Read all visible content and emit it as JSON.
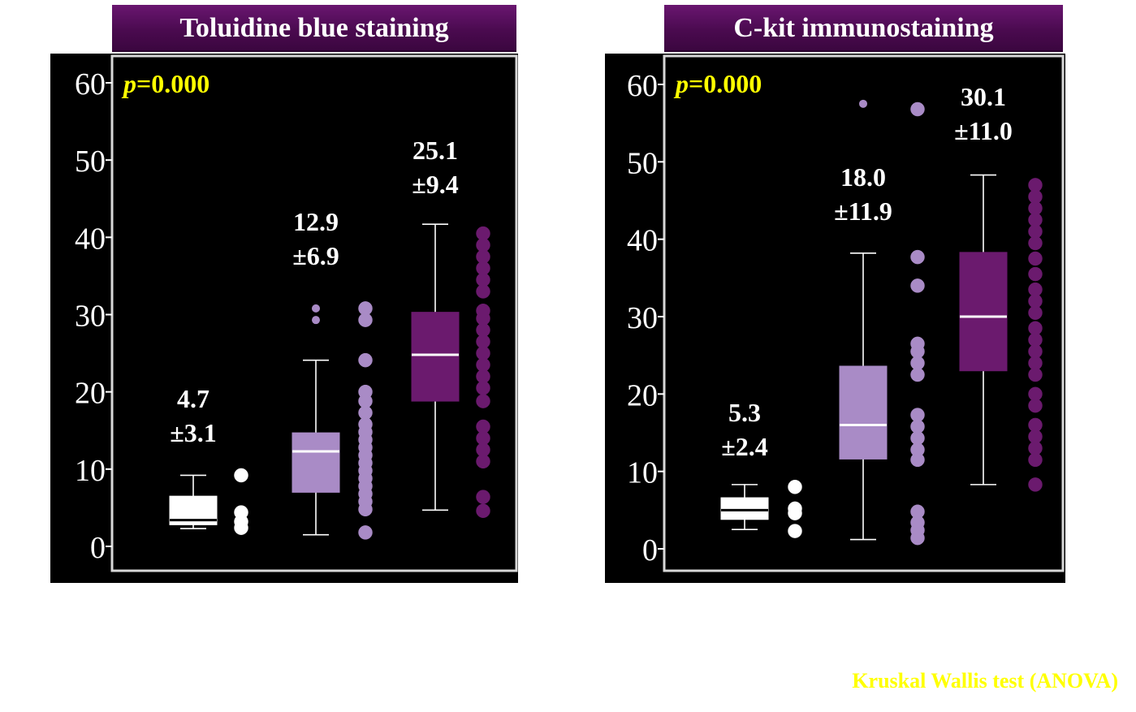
{
  "footnote": "Kruskal Wallis test (ANOVA)",
  "colors": {
    "background": "#000000",
    "axis": "#ffffff",
    "pvalue": "#ffff00",
    "group1": "#ffffff",
    "group2": "#a98bc6",
    "group3": "#6b1a6e",
    "title_bg": "#4a0a4f"
  },
  "chart_data": [
    {
      "type": "box",
      "title": "Toluidine blue staining",
      "ylim": [
        0,
        60
      ],
      "yticks": [
        0,
        10,
        20,
        30,
        40,
        50,
        60
      ],
      "ytick_labels": [
        "0",
        "10",
        "20",
        "30",
        "40",
        "50",
        "60"
      ],
      "pvalue": {
        "prefix": "p",
        "value": "=0.000"
      },
      "grid": false,
      "groups": [
        {
          "mean_label": "4.7",
          "sd_label": "±3.1",
          "color": "#ffffff",
          "whisker_low": 2.3,
          "q1": 2.8,
          "median": 3.4,
          "q3": 6.5,
          "whisker_high": 9.2,
          "outliers": [],
          "points": [
            2.4,
            3.2,
            4.4,
            9.2
          ]
        },
        {
          "mean_label": "12.9",
          "sd_label": "±6.9",
          "color": "#a98bc6",
          "whisker_low": 1.5,
          "q1": 7.0,
          "median": 12.3,
          "q3": 14.7,
          "whisker_high": 24.1,
          "outliers": [
            29.3,
            30.8
          ],
          "points": [
            1.8,
            4.8,
            5.8,
            6.8,
            7.8,
            8.8,
            9.8,
            10.8,
            11.8,
            12.8,
            13.8,
            14.8,
            15.8,
            17.3,
            18.8,
            20.0,
            24.1,
            29.3,
            30.8
          ]
        },
        {
          "mean_label": "25.1",
          "sd_label": "±9.4",
          "color": "#6b1a6e",
          "whisker_low": 4.7,
          "q1": 18.8,
          "median": 24.8,
          "q3": 30.3,
          "whisker_high": 41.7,
          "outliers": [],
          "points": [
            4.6,
            6.4,
            11.0,
            12.5,
            14.0,
            15.5,
            18.8,
            20.5,
            22.0,
            23.5,
            25.0,
            26.5,
            28.0,
            29.5,
            30.5,
            33.0,
            34.5,
            36.0,
            37.5,
            39.0,
            40.5
          ]
        }
      ]
    },
    {
      "type": "box",
      "title": "C-kit immunostaining",
      "ylim": [
        0,
        60
      ],
      "yticks": [
        0,
        10,
        20,
        30,
        40,
        50,
        60
      ],
      "ytick_labels": [
        "0",
        "10",
        "20",
        "30",
        "40",
        "50",
        "60"
      ],
      "pvalue": {
        "prefix": "p",
        "value": "=0.000"
      },
      "grid": false,
      "groups": [
        {
          "mean_label": "5.3",
          "sd_label": "±2.4",
          "color": "#ffffff",
          "whisker_low": 2.5,
          "q1": 3.8,
          "median": 5.0,
          "q3": 6.6,
          "whisker_high": 8.3,
          "outliers": [],
          "points": [
            2.3,
            4.6,
            5.2,
            8.0
          ]
        },
        {
          "mean_label": "18.0",
          "sd_label": "±11.9",
          "color": "#a98bc6",
          "whisker_low": 1.2,
          "q1": 11.6,
          "median": 16.0,
          "q3": 23.6,
          "whisker_high": 38.2,
          "outliers": [
            57.5
          ],
          "points": [
            1.4,
            2.4,
            3.4,
            4.8,
            11.5,
            12.8,
            14.3,
            15.8,
            17.3,
            22.5,
            24.0,
            25.5,
            26.5,
            34.0,
            37.7,
            56.8
          ]
        },
        {
          "mean_label": "30.1",
          "sd_label": "±11.0",
          "color": "#6b1a6e",
          "whisker_low": 8.3,
          "q1": 23.0,
          "median": 30.0,
          "q3": 38.3,
          "whisker_high": 48.3,
          "outliers": [],
          "points": [
            8.3,
            11.5,
            13.0,
            14.5,
            16.0,
            18.5,
            20.0,
            22.5,
            24.0,
            25.5,
            27.0,
            28.5,
            30.5,
            32.0,
            33.5,
            35.5,
            37.5,
            39.5,
            41.0,
            42.5,
            44.0,
            45.5,
            47.0
          ]
        }
      ]
    }
  ]
}
